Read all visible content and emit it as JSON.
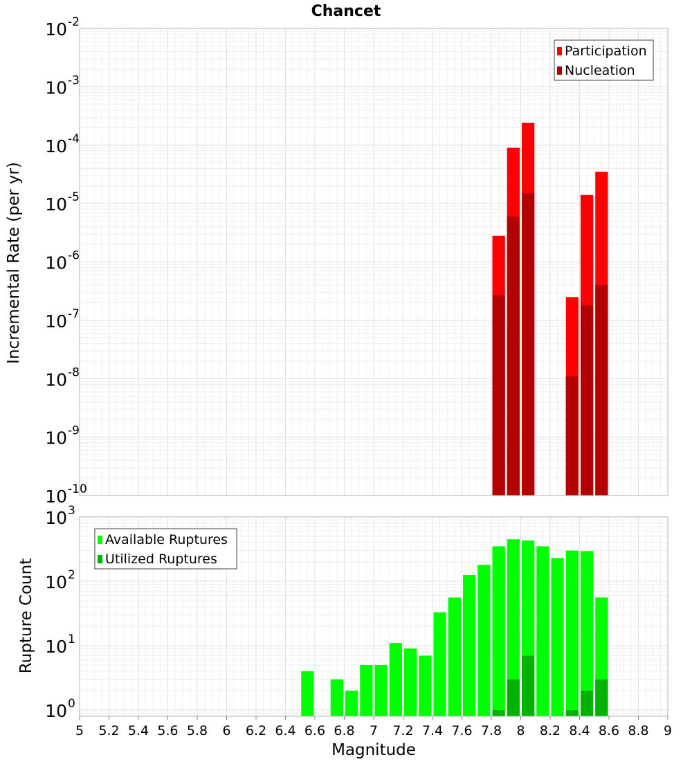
{
  "title": "Chancet",
  "colors": {
    "participation": "#ff0000",
    "nucleation": "#b30000",
    "available": "#00ff00",
    "utilized": "#00b300",
    "grid": "#e6e6e6",
    "frame": "#b0b0b0"
  },
  "chart_data": [
    {
      "type": "bar",
      "panel": "rates",
      "ylabel": "Incremental Rate (per yr)",
      "xlabel": "",
      "yscale": "log",
      "ylim": [
        1e-10,
        0.01
      ],
      "xlim": [
        5,
        9
      ],
      "grid": true,
      "legend_position": "top-right",
      "y_ticks": [
        {
          "value": 1e-10,
          "base": "10",
          "exp": "-10"
        },
        {
          "value": 1e-09,
          "base": "10",
          "exp": "-9"
        },
        {
          "value": 1e-08,
          "base": "10",
          "exp": "-8"
        },
        {
          "value": 1e-07,
          "base": "10",
          "exp": "-7"
        },
        {
          "value": 1e-06,
          "base": "10",
          "exp": "-6"
        },
        {
          "value": 1e-05,
          "base": "10",
          "exp": "-5"
        },
        {
          "value": 0.0001,
          "base": "10",
          "exp": "-4"
        },
        {
          "value": 0.001,
          "base": "10",
          "exp": "-3"
        },
        {
          "value": 0.01,
          "base": "10",
          "exp": "-2"
        }
      ],
      "series": [
        {
          "name": "Participation",
          "color_key": "participation",
          "points": [
            {
              "x": 7.85,
              "y": 2.8e-06
            },
            {
              "x": 7.95,
              "y": 9e-05
            },
            {
              "x": 8.05,
              "y": 0.00024
            },
            {
              "x": 8.35,
              "y": 2.5e-07
            },
            {
              "x": 8.45,
              "y": 1.4e-05
            },
            {
              "x": 8.55,
              "y": 3.5e-05
            }
          ]
        },
        {
          "name": "Nucleation",
          "color_key": "nucleation",
          "points": [
            {
              "x": 7.85,
              "y": 2.7e-07
            },
            {
              "x": 7.95,
              "y": 6e-06
            },
            {
              "x": 8.05,
              "y": 1.5e-05
            },
            {
              "x": 8.35,
              "y": 1.1e-08
            },
            {
              "x": 8.45,
              "y": 1.8e-07
            },
            {
              "x": 8.55,
              "y": 4e-07
            }
          ]
        }
      ]
    },
    {
      "type": "bar",
      "panel": "counts",
      "ylabel": "Rupture Count",
      "xlabel": "Magnitude",
      "yscale": "log",
      "ylim": [
        0.8,
        1000
      ],
      "xlim": [
        5,
        9
      ],
      "grid": true,
      "legend_position": "top-left",
      "x_ticks": [
        "5",
        "5.2",
        "5.4",
        "5.6",
        "5.8",
        "6",
        "6.2",
        "6.4",
        "6.6",
        "6.8",
        "7",
        "7.2",
        "7.4",
        "7.6",
        "7.8",
        "8",
        "8.2",
        "8.4",
        "8.6",
        "8.8",
        "9"
      ],
      "y_ticks": [
        {
          "value": 1,
          "base": "10",
          "exp": "0"
        },
        {
          "value": 10,
          "base": "10",
          "exp": "1"
        },
        {
          "value": 100,
          "base": "10",
          "exp": "2"
        },
        {
          "value": 1000,
          "base": "10",
          "exp": "3"
        }
      ],
      "series": [
        {
          "name": "Available Ruptures",
          "color_key": "available",
          "points": [
            {
              "x": 6.55,
              "y": 4
            },
            {
              "x": 6.75,
              "y": 3
            },
            {
              "x": 6.85,
              "y": 2
            },
            {
              "x": 6.95,
              "y": 5
            },
            {
              "x": 7.05,
              "y": 5
            },
            {
              "x": 7.15,
              "y": 11
            },
            {
              "x": 7.25,
              "y": 9
            },
            {
              "x": 7.35,
              "y": 7
            },
            {
              "x": 7.45,
              "y": 33
            },
            {
              "x": 7.55,
              "y": 56
            },
            {
              "x": 7.65,
              "y": 125
            },
            {
              "x": 7.75,
              "y": 180
            },
            {
              "x": 7.85,
              "y": 350
            },
            {
              "x": 7.95,
              "y": 450
            },
            {
              "x": 8.05,
              "y": 430
            },
            {
              "x": 8.15,
              "y": 350
            },
            {
              "x": 8.25,
              "y": 230
            },
            {
              "x": 8.35,
              "y": 300
            },
            {
              "x": 8.45,
              "y": 295
            },
            {
              "x": 8.55,
              "y": 56
            }
          ]
        },
        {
          "name": "Utilized Ruptures",
          "color_key": "utilized",
          "points": [
            {
              "x": 7.85,
              "y": 1
            },
            {
              "x": 7.95,
              "y": 3
            },
            {
              "x": 8.05,
              "y": 7
            },
            {
              "x": 8.35,
              "y": 1
            },
            {
              "x": 8.45,
              "y": 2
            },
            {
              "x": 8.55,
              "y": 3
            }
          ]
        }
      ]
    }
  ]
}
